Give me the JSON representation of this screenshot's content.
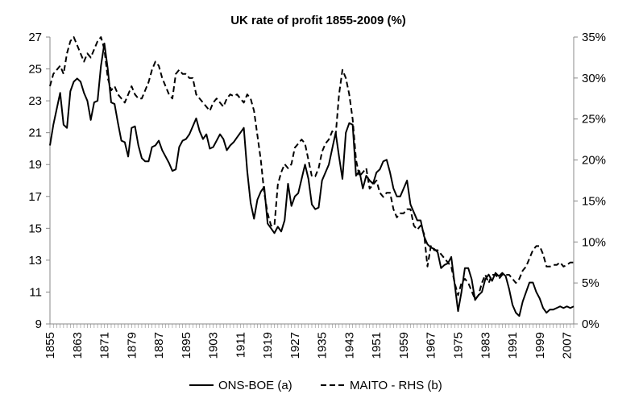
{
  "chart_data": {
    "type": "line",
    "title": "UK rate of profit 1855-2009 (%)",
    "xlabel": "",
    "ylabel": "",
    "y2label": "",
    "x_tick_labels": [
      "1855",
      "1863",
      "1871",
      "1879",
      "1887",
      "1895",
      "1903",
      "1911",
      "1919",
      "1927",
      "1935",
      "1943",
      "1951",
      "1959",
      "1967",
      "1975",
      "1983",
      "1991",
      "1999",
      "2007"
    ],
    "xlim": [
      1855,
      2009
    ],
    "ylim": [
      9,
      27
    ],
    "y_tick_labels": [
      "9",
      "11",
      "13",
      "15",
      "17",
      "19",
      "21",
      "23",
      "25",
      "27"
    ],
    "y2lim": [
      0,
      35
    ],
    "y2_tick_labels": [
      "0%",
      "5%",
      "10%",
      "15%",
      "20%",
      "25%",
      "30%",
      "35%"
    ],
    "grid": false,
    "legend_position": "bottom",
    "series": [
      {
        "name": "ONS-BOE (a)",
        "axis": "left",
        "style": "solid",
        "color": "#000000",
        "points": [
          [
            1855,
            20.2
          ],
          [
            1856,
            21.5
          ],
          [
            1857,
            22.5
          ],
          [
            1858,
            23.5
          ],
          [
            1859,
            21.5
          ],
          [
            1860,
            21.3
          ],
          [
            1861,
            23.6
          ],
          [
            1862,
            24.2
          ],
          [
            1863,
            24.4
          ],
          [
            1864,
            24.2
          ],
          [
            1865,
            23.5
          ],
          [
            1866,
            23.0
          ],
          [
            1867,
            21.8
          ],
          [
            1868,
            22.9
          ],
          [
            1869,
            23.0
          ],
          [
            1870,
            25.2
          ],
          [
            1871,
            26.6
          ],
          [
            1872,
            25.0
          ],
          [
            1873,
            22.9
          ],
          [
            1874,
            22.8
          ],
          [
            1875,
            21.6
          ],
          [
            1876,
            20.5
          ],
          [
            1877,
            20.4
          ],
          [
            1878,
            19.5
          ],
          [
            1879,
            21.3
          ],
          [
            1880,
            21.4
          ],
          [
            1881,
            20.2
          ],
          [
            1882,
            19.4
          ],
          [
            1883,
            19.2
          ],
          [
            1884,
            19.2
          ],
          [
            1885,
            20.1
          ],
          [
            1886,
            20.2
          ],
          [
            1887,
            20.5
          ],
          [
            1888,
            19.9
          ],
          [
            1889,
            19.5
          ],
          [
            1890,
            19.1
          ],
          [
            1891,
            18.6
          ],
          [
            1892,
            18.7
          ],
          [
            1893,
            20.1
          ],
          [
            1894,
            20.5
          ],
          [
            1895,
            20.6
          ],
          [
            1896,
            20.9
          ],
          [
            1897,
            21.4
          ],
          [
            1898,
            21.9
          ],
          [
            1899,
            21.1
          ],
          [
            1900,
            20.6
          ],
          [
            1901,
            20.9
          ],
          [
            1902,
            20.0
          ],
          [
            1903,
            20.1
          ],
          [
            1904,
            20.5
          ],
          [
            1905,
            20.9
          ],
          [
            1906,
            20.6
          ],
          [
            1907,
            19.9
          ],
          [
            1908,
            20.2
          ],
          [
            1909,
            20.4
          ],
          [
            1910,
            20.7
          ],
          [
            1911,
            21.0
          ],
          [
            1912,
            21.3
          ],
          [
            1913,
            18.6
          ],
          [
            1914,
            16.6
          ],
          [
            1915,
            15.6
          ],
          [
            1916,
            16.8
          ],
          [
            1917,
            17.3
          ],
          [
            1918,
            17.6
          ],
          [
            1919,
            15.3
          ],
          [
            1920,
            15.0
          ],
          [
            1921,
            14.7
          ],
          [
            1922,
            15.1
          ],
          [
            1923,
            14.8
          ],
          [
            1924,
            15.5
          ],
          [
            1925,
            17.8
          ],
          [
            1926,
            16.4
          ],
          [
            1927,
            17.0
          ],
          [
            1928,
            17.2
          ],
          [
            1929,
            18.1
          ],
          [
            1930,
            19.0
          ],
          [
            1931,
            18.1
          ],
          [
            1932,
            16.5
          ],
          [
            1933,
            16.2
          ],
          [
            1934,
            16.3
          ],
          [
            1935,
            18.0
          ],
          [
            1936,
            18.5
          ],
          [
            1937,
            19.0
          ],
          [
            1938,
            20.0
          ],
          [
            1939,
            21.0
          ],
          [
            1940,
            19.5
          ],
          [
            1941,
            18.1
          ],
          [
            1942,
            21.0
          ],
          [
            1943,
            21.6
          ],
          [
            1944,
            21.5
          ],
          [
            1945,
            18.3
          ],
          [
            1946,
            18.6
          ],
          [
            1947,
            17.5
          ],
          [
            1948,
            18.3
          ],
          [
            1949,
            18.0
          ],
          [
            1950,
            17.8
          ],
          [
            1951,
            18.5
          ],
          [
            1952,
            18.7
          ],
          [
            1953,
            19.2
          ],
          [
            1954,
            19.3
          ],
          [
            1955,
            18.5
          ],
          [
            1956,
            17.5
          ],
          [
            1957,
            17.0
          ],
          [
            1958,
            17.0
          ],
          [
            1959,
            17.5
          ],
          [
            1960,
            18.0
          ],
          [
            1961,
            16.5
          ],
          [
            1962,
            16.0
          ],
          [
            1963,
            15.5
          ],
          [
            1964,
            15.5
          ],
          [
            1965,
            14.5
          ],
          [
            1966,
            14.0
          ],
          [
            1967,
            13.8
          ],
          [
            1968,
            13.7
          ],
          [
            1969,
            13.5
          ],
          [
            1970,
            12.5
          ],
          [
            1971,
            12.7
          ],
          [
            1972,
            12.8
          ],
          [
            1973,
            13.2
          ],
          [
            1974,
            11.5
          ],
          [
            1975,
            9.8
          ],
          [
            1976,
            11.0
          ],
          [
            1977,
            12.5
          ],
          [
            1978,
            12.5
          ],
          [
            1979,
            11.8
          ],
          [
            1980,
            10.5
          ],
          [
            1981,
            10.8
          ],
          [
            1982,
            11.0
          ],
          [
            1983,
            11.8
          ],
          [
            1984,
            12.1
          ],
          [
            1985,
            11.7
          ],
          [
            1986,
            12.2
          ],
          [
            1987,
            12.0
          ],
          [
            1988,
            12.2
          ],
          [
            1989,
            12.0
          ],
          [
            1990,
            11.2
          ],
          [
            1991,
            10.2
          ],
          [
            1992,
            9.7
          ],
          [
            1993,
            9.5
          ],
          [
            1994,
            10.4
          ],
          [
            1995,
            11.0
          ],
          [
            1996,
            11.6
          ],
          [
            1997,
            11.6
          ],
          [
            1998,
            11.0
          ],
          [
            1999,
            10.6
          ],
          [
            2000,
            10.0
          ],
          [
            2001,
            9.7
          ],
          [
            2002,
            9.9
          ],
          [
            2003,
            9.9
          ],
          [
            2004,
            10.0
          ],
          [
            2005,
            10.1
          ],
          [
            2006,
            10.0
          ],
          [
            2007,
            10.1
          ],
          [
            2008,
            10.0
          ],
          [
            2009,
            10.1
          ]
        ]
      },
      {
        "name": "MAITO - RHS (b)",
        "axis": "right",
        "style": "dashed",
        "color": "#000000",
        "points": [
          [
            1855,
            29.0
          ],
          [
            1856,
            30.5
          ],
          [
            1857,
            31.0
          ],
          [
            1858,
            31.5
          ],
          [
            1859,
            30.5
          ],
          [
            1860,
            33.0
          ],
          [
            1861,
            34.5
          ],
          [
            1862,
            35.0
          ],
          [
            1863,
            34.0
          ],
          [
            1864,
            33.0
          ],
          [
            1865,
            32.0
          ],
          [
            1866,
            33.0
          ],
          [
            1867,
            32.5
          ],
          [
            1868,
            33.5
          ],
          [
            1869,
            34.5
          ],
          [
            1870,
            35.0
          ],
          [
            1871,
            33.5
          ],
          [
            1872,
            30.0
          ],
          [
            1873,
            28.5
          ],
          [
            1874,
            29.0
          ],
          [
            1875,
            28.0
          ],
          [
            1876,
            27.5
          ],
          [
            1877,
            27.0
          ],
          [
            1878,
            28.0
          ],
          [
            1879,
            29.0
          ],
          [
            1880,
            28.0
          ],
          [
            1881,
            27.5
          ],
          [
            1882,
            27.5
          ],
          [
            1883,
            28.5
          ],
          [
            1884,
            29.5
          ],
          [
            1885,
            31.0
          ],
          [
            1886,
            32.0
          ],
          [
            1887,
            31.5
          ],
          [
            1888,
            30.0
          ],
          [
            1889,
            29.0
          ],
          [
            1890,
            28.0
          ],
          [
            1891,
            27.5
          ],
          [
            1892,
            30.5
          ],
          [
            1893,
            31.0
          ],
          [
            1894,
            30.5
          ],
          [
            1895,
            30.5
          ],
          [
            1896,
            30.0
          ],
          [
            1897,
            30.0
          ],
          [
            1898,
            28.0
          ],
          [
            1899,
            27.5
          ],
          [
            1900,
            27.0
          ],
          [
            1901,
            26.5
          ],
          [
            1902,
            26.0
          ],
          [
            1903,
            27.0
          ],
          [
            1904,
            27.5
          ],
          [
            1905,
            27.0
          ],
          [
            1906,
            26.5
          ],
          [
            1907,
            27.5
          ],
          [
            1908,
            28.0
          ],
          [
            1909,
            27.8
          ],
          [
            1910,
            28.0
          ],
          [
            1911,
            27.5
          ],
          [
            1912,
            27.0
          ],
          [
            1913,
            28.0
          ],
          [
            1914,
            27.5
          ],
          [
            1915,
            26.0
          ],
          [
            1916,
            23.0
          ],
          [
            1917,
            20.0
          ],
          [
            1918,
            16.0
          ],
          [
            1919,
            13.5
          ],
          [
            1920,
            12.0
          ],
          [
            1921,
            12.0
          ],
          [
            1922,
            17.0
          ],
          [
            1923,
            18.5
          ],
          [
            1924,
            19.5
          ],
          [
            1925,
            19.0
          ],
          [
            1926,
            19.5
          ],
          [
            1927,
            21.5
          ],
          [
            1928,
            22.0
          ],
          [
            1929,
            22.5
          ],
          [
            1930,
            22.0
          ],
          [
            1931,
            20.0
          ],
          [
            1932,
            18.0
          ],
          [
            1933,
            18.0
          ],
          [
            1934,
            19.0
          ],
          [
            1935,
            21.0
          ],
          [
            1936,
            22.0
          ],
          [
            1937,
            22.5
          ],
          [
            1938,
            23.5
          ],
          [
            1939,
            23.0
          ],
          [
            1940,
            28.0
          ],
          [
            1941,
            31.0
          ],
          [
            1942,
            30.0
          ],
          [
            1943,
            28.0
          ],
          [
            1944,
            25.0
          ],
          [
            1945,
            20.0
          ],
          [
            1946,
            18.0
          ],
          [
            1947,
            18.5
          ],
          [
            1948,
            19.0
          ],
          [
            1949,
            16.5
          ],
          [
            1950,
            17.0
          ],
          [
            1951,
            17.5
          ],
          [
            1952,
            16.0
          ],
          [
            1953,
            15.5
          ],
          [
            1954,
            16.0
          ],
          [
            1955,
            16.0
          ],
          [
            1956,
            14.0
          ],
          [
            1957,
            13.0
          ],
          [
            1958,
            13.5
          ],
          [
            1959,
            13.5
          ],
          [
            1960,
            14.0
          ],
          [
            1961,
            14.0
          ],
          [
            1962,
            12.0
          ],
          [
            1963,
            11.5
          ],
          [
            1964,
            12.0
          ],
          [
            1965,
            11.0
          ],
          [
            1966,
            7.0
          ],
          [
            1967,
            9.5
          ],
          [
            1968,
            9.0
          ],
          [
            1969,
            9.0
          ],
          [
            1970,
            8.5
          ],
          [
            1971,
            8.0
          ],
          [
            1972,
            7.5
          ],
          [
            1973,
            7.0
          ],
          [
            1974,
            5.0
          ],
          [
            1975,
            3.5
          ],
          [
            1976,
            5.0
          ],
          [
            1977,
            5.5
          ],
          [
            1978,
            5.0
          ],
          [
            1979,
            4.0
          ],
          [
            1980,
            3.0
          ],
          [
            1981,
            3.5
          ],
          [
            1982,
            5.0
          ],
          [
            1983,
            6.0
          ],
          [
            1984,
            5.0
          ],
          [
            1985,
            6.0
          ],
          [
            1986,
            6.0
          ],
          [
            1987,
            5.5
          ],
          [
            1988,
            6.0
          ],
          [
            1989,
            6.0
          ],
          [
            1990,
            6.0
          ],
          [
            1991,
            5.5
          ],
          [
            1992,
            5.0
          ],
          [
            1993,
            5.5
          ],
          [
            1994,
            6.5
          ],
          [
            1995,
            7.0
          ],
          [
            1996,
            8.0
          ],
          [
            1997,
            9.0
          ],
          [
            1998,
            9.5
          ],
          [
            1999,
            9.5
          ],
          [
            2000,
            8.5
          ],
          [
            2001,
            7.0
          ],
          [
            2002,
            7.0
          ],
          [
            2003,
            7.2
          ],
          [
            2004,
            7.2
          ],
          [
            2005,
            7.5
          ],
          [
            2006,
            7.0
          ],
          [
            2007,
            7.2
          ],
          [
            2008,
            7.5
          ],
          [
            2009,
            7.5
          ]
        ]
      }
    ]
  }
}
